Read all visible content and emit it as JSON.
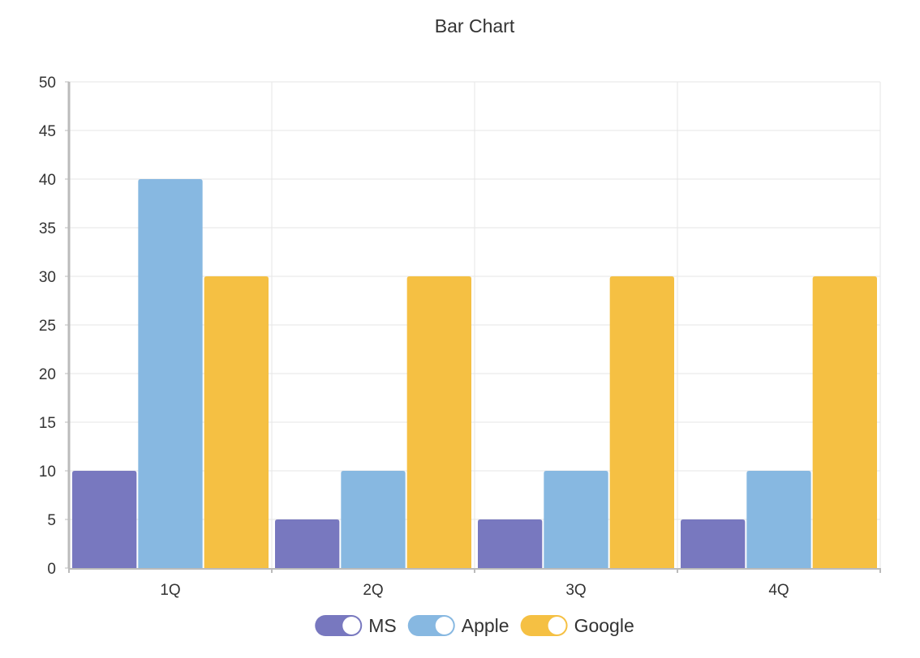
{
  "chart_data": {
    "type": "bar",
    "title": "Bar Chart",
    "categories": [
      "1Q",
      "2Q",
      "3Q",
      "4Q"
    ],
    "series": [
      {
        "name": "MS",
        "values": [
          10,
          5,
          5,
          5
        ],
        "color": "#7878bf"
      },
      {
        "name": "Apple",
        "values": [
          40,
          10,
          10,
          10
        ],
        "color": "#87b8e1"
      },
      {
        "name": "Google",
        "values": [
          30,
          30,
          30,
          30
        ],
        "color": "#f5c043"
      }
    ],
    "ylim": [
      0,
      50
    ],
    "yticks": [
      "0",
      "5",
      "10",
      "15",
      "20",
      "25",
      "30",
      "35",
      "40",
      "45",
      "50"
    ],
    "grid": true,
    "legend": {
      "position": "bottom",
      "style": "toggle-switch",
      "all_enabled": true
    }
  }
}
